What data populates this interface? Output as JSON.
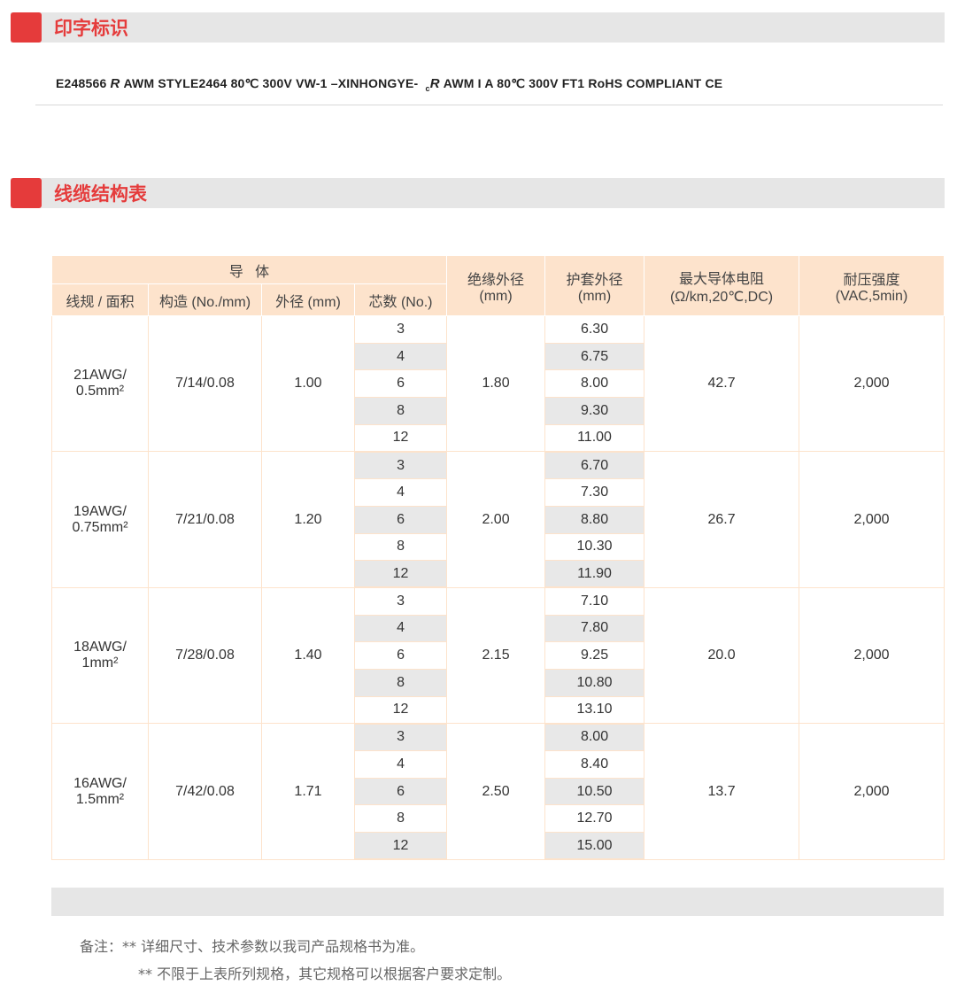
{
  "sections": {
    "marking_title": "印字标识",
    "table_title": "线缆结构表"
  },
  "marking": {
    "before": "E248566",
    "ul_mark": "R",
    "middle": "AWM STYLE2464 80℃ 300V VW-1 –XINHONGYE-",
    "cul_prefix": "c",
    "after": "AWM I A 80℃ 300V FT1 RoHS COMPLIANT CE"
  },
  "table": {
    "group_header": "导   体",
    "headers": [
      "线规 / 面积",
      "构造 (No./mm)",
      "外径 (mm)",
      "芯数 (No.)"
    ],
    "insul": [
      "绝缘外径",
      "(mm)"
    ],
    "jacket": [
      "护套外径",
      "(mm)"
    ],
    "resist": [
      "最大导体电阻",
      "(Ω/km,20℃,DC)"
    ],
    "volt": [
      "耐压强度",
      "(VAC,5min)"
    ],
    "groups": [
      {
        "gauge": [
          "21AWG/",
          "0.5mm²"
        ],
        "strand": "7/14/0.08",
        "od": "1.00",
        "insul": "1.80",
        "resist": "42.7",
        "volt": "2,000",
        "cores": [
          "3",
          "4",
          "6",
          "8",
          "12"
        ],
        "jacket": [
          "6.30",
          "6.75",
          "8.00",
          "9.30",
          "11.00"
        ]
      },
      {
        "gauge": [
          "19AWG/",
          "0.75mm²"
        ],
        "strand": "7/21/0.08",
        "od": "1.20",
        "insul": "2.00",
        "resist": "26.7",
        "volt": "2,000",
        "cores": [
          "3",
          "4",
          "6",
          "8",
          "12"
        ],
        "jacket": [
          "6.70",
          "7.30",
          "8.80",
          "10.30",
          "11.90"
        ]
      },
      {
        "gauge": [
          "18AWG/",
          "1mm²"
        ],
        "strand": "7/28/0.08",
        "od": "1.40",
        "insul": "2.15",
        "resist": "20.0",
        "volt": "2,000",
        "cores": [
          "3",
          "4",
          "6",
          "8",
          "12"
        ],
        "jacket": [
          "7.10",
          "7.80",
          "9.25",
          "10.80",
          "13.10"
        ]
      },
      {
        "gauge": [
          "16AWG/",
          "1.5mm²"
        ],
        "strand": "7/42/0.08",
        "od": "1.71",
        "insul": "2.50",
        "resist": "13.7",
        "volt": "2,000",
        "cores": [
          "3",
          "4",
          "6",
          "8",
          "12"
        ],
        "jacket": [
          "8.00",
          "8.40",
          "10.50",
          "12.70",
          "15.00"
        ]
      }
    ]
  },
  "notes": [
    "备注：** 详细尺寸、技术参数以我司产品规格书为准。",
    "** 不限于上表所列规格，其它规格可以根据客户要求定制。"
  ],
  "colors": {
    "accent": "#e53b3b",
    "header_bg": "#fde3cc",
    "stripe": "#e8e8e8"
  }
}
